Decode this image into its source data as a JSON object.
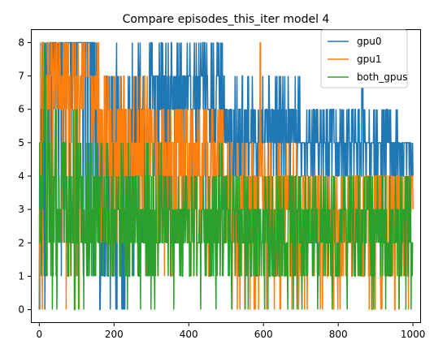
{
  "chart_data": {
    "type": "line",
    "title": "Compare episodes_this_iter model 4",
    "xlabel": "",
    "ylabel": "",
    "xlim": [
      -22.45,
      1021.45
    ],
    "ylim": [
      -0.4,
      8.4
    ],
    "x_ticks": [
      0,
      200,
      400,
      600,
      800,
      1000
    ],
    "x_tick_labels": [
      "0",
      "200",
      "400",
      "600",
      "800",
      "1000"
    ],
    "y_ticks": [
      0,
      1,
      2,
      3,
      4,
      5,
      6,
      7,
      8
    ],
    "y_tick_labels": [
      "0",
      "1",
      "2",
      "3",
      "4",
      "5",
      "6",
      "7",
      "8"
    ],
    "grid": false,
    "legend_position": "upper-right",
    "series": [
      {
        "name": "gpu0",
        "color": "#1f77b4",
        "segments": [
          {
            "start": 0,
            "end": 20,
            "low": 0,
            "high": 8
          },
          {
            "start": 20,
            "end": 150,
            "low": 0,
            "high": 8
          },
          {
            "start": 150,
            "end": 230,
            "low": 0,
            "high": 8
          },
          {
            "start": 230,
            "end": 300,
            "low": 1,
            "high": 8
          },
          {
            "start": 300,
            "end": 380,
            "low": 2,
            "high": 8
          },
          {
            "start": 380,
            "end": 500,
            "low": 3,
            "high": 8
          },
          {
            "start": 500,
            "end": 560,
            "low": 3,
            "high": 7
          },
          {
            "start": 560,
            "end": 640,
            "low": 4,
            "high": 7
          },
          {
            "start": 640,
            "end": 700,
            "low": 4,
            "high": 7
          },
          {
            "start": 700,
            "end": 860,
            "low": 4,
            "high": 6
          },
          {
            "start": 860,
            "end": 870,
            "low": 4,
            "high": 7
          },
          {
            "start": 870,
            "end": 960,
            "low": 4,
            "high": 6
          },
          {
            "start": 960,
            "end": 1000,
            "low": 4,
            "high": 5
          }
        ]
      },
      {
        "name": "gpu1",
        "color": "#ff7f0e",
        "segments": [
          {
            "start": 0,
            "end": 10,
            "low": 0,
            "high": 8
          },
          {
            "start": 10,
            "end": 120,
            "low": 0,
            "high": 8
          },
          {
            "start": 120,
            "end": 160,
            "low": 0,
            "high": 8
          },
          {
            "start": 160,
            "end": 230,
            "low": 1,
            "high": 7
          },
          {
            "start": 230,
            "end": 300,
            "low": 1,
            "high": 7
          },
          {
            "start": 300,
            "end": 380,
            "low": 1,
            "high": 6
          },
          {
            "start": 380,
            "end": 500,
            "low": 1,
            "high": 6
          },
          {
            "start": 500,
            "end": 590,
            "low": 0,
            "high": 5
          },
          {
            "start": 590,
            "end": 592,
            "low": 0,
            "high": 8
          },
          {
            "start": 592,
            "end": 700,
            "low": 0,
            "high": 5
          },
          {
            "start": 700,
            "end": 800,
            "low": 0,
            "high": 4
          },
          {
            "start": 800,
            "end": 1000,
            "low": 0,
            "high": 4
          }
        ]
      },
      {
        "name": "both_gpus",
        "color": "#2ca02c",
        "segments": [
          {
            "start": 0,
            "end": 20,
            "low": 0,
            "high": 8
          },
          {
            "start": 20,
            "end": 120,
            "low": 0,
            "high": 6
          },
          {
            "start": 120,
            "end": 300,
            "low": 0,
            "high": 5
          },
          {
            "start": 300,
            "end": 500,
            "low": 0,
            "high": 5
          },
          {
            "start": 500,
            "end": 700,
            "low": 0,
            "high": 4
          },
          {
            "start": 700,
            "end": 1000,
            "low": 0,
            "high": 4
          }
        ]
      }
    ]
  }
}
